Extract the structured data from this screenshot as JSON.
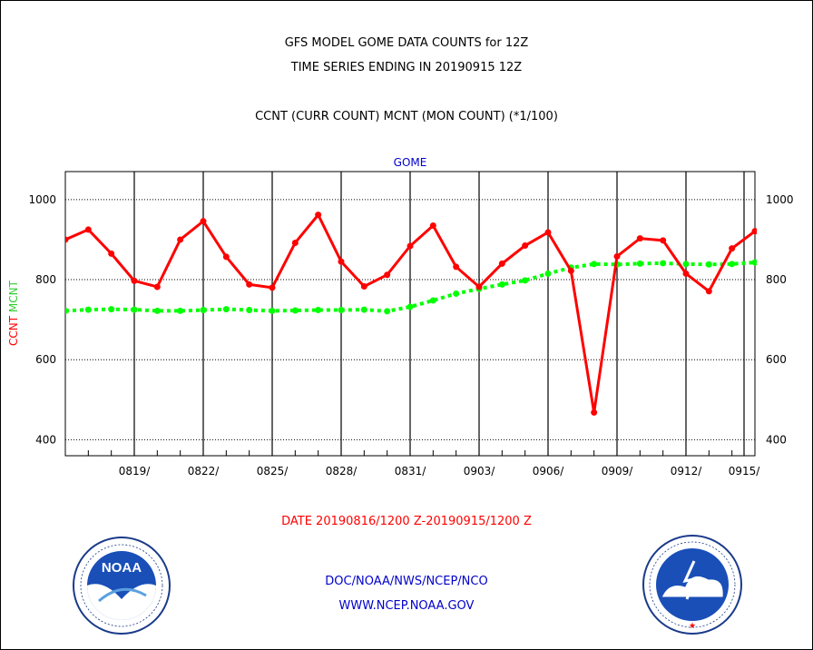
{
  "header": {
    "title_line1": "GFS MODEL GOME DATA COUNTS for 12Z",
    "title_line2": "TIME SERIES ENDING IN 20190915 12Z",
    "legend_line": "CCNT (CURR COUNT) MCNT (MON COUNT) (*1/100)"
  },
  "footer": {
    "date_range": "DATE 20190816/1200 Z-20190915/1200 Z",
    "agency": "DOC/NOAA/NWS/NCEP/NCO",
    "website": "WWW.NCEP.NOAA.GOV"
  },
  "logos": {
    "noaa_text": "NOAA",
    "noaa_ring": "NATIONAL OCEANIC AND ATMOSPHERIC ADMINISTRATION · U.S. DEPARTMENT OF COMMERCE",
    "nws_ring": "NATIONAL WEATHER SERVICE"
  },
  "colors": {
    "ccnt": "#ff0000",
    "mcnt": "#00ff00",
    "date_range": "#ff0000",
    "agency": "#0000cc",
    "panel_title": "#0000cc"
  },
  "chart_data": {
    "type": "line",
    "title": "GOME",
    "ylabel_series": [
      "CCNT",
      "MCNT"
    ],
    "ylim": [
      360,
      1070
    ],
    "yticks": [
      400,
      600,
      800,
      1000
    ],
    "xticks": [
      "0819/",
      "0822/",
      "0825/",
      "0828/",
      "0831/",
      "0903/",
      "0906/",
      "0909/",
      "0912/",
      "0915/"
    ],
    "x_start": "0816",
    "x_end": "0915",
    "grid": true,
    "series": [
      {
        "name": "CCNT",
        "color": "#ff0000",
        "values": [
          900,
          925,
          865,
          797,
          782,
          900,
          946,
          857,
          788,
          780,
          892,
          962,
          845,
          783,
          812,
          884,
          935,
          832,
          782,
          840,
          885,
          918,
          822,
          468,
          858,
          903,
          898,
          815,
          771,
          878,
          921
        ]
      },
      {
        "name": "MCNT",
        "color": "#00ff00",
        "values": [
          722,
          725,
          726,
          725,
          722,
          722,
          724,
          726,
          724,
          722,
          723,
          724,
          724,
          725,
          721,
          732,
          748,
          765,
          777,
          788,
          798,
          815,
          830,
          839,
          838,
          840,
          841,
          839,
          838,
          839,
          843
        ]
      }
    ]
  }
}
